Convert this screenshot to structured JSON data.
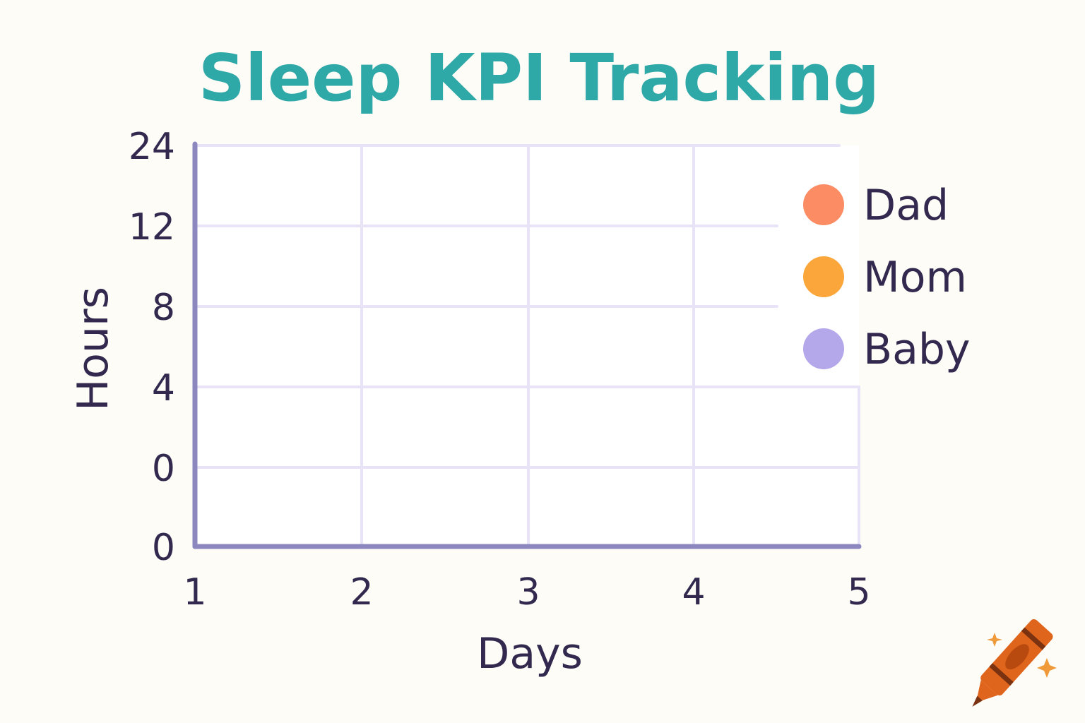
{
  "chart_data": {
    "type": "line",
    "title": "Sleep KPI Tracking",
    "xlabel": "Days",
    "ylabel": "Hours",
    "x_ticks": [
      "1",
      "2",
      "3",
      "4",
      "5"
    ],
    "y_ticks": [
      "0",
      "0",
      "4",
      "8",
      "12",
      "24"
    ],
    "series": [
      {
        "name": "Dad",
        "color": "#fb8c63",
        "values": []
      },
      {
        "name": "Mom",
        "color": "#fba63a",
        "values": []
      },
      {
        "name": "Baby",
        "color": "#b4a7ea",
        "values": []
      }
    ],
    "grid": true,
    "legend_position": "right"
  },
  "colors": {
    "title": "#2fa8a8",
    "text": "#33294f",
    "axis": "#8c88bf",
    "grid": "#e8e3f7",
    "crayon": "#e0651c",
    "sparkle": "#f09a3a"
  },
  "icons": {
    "decoration": "crayon-icon"
  }
}
